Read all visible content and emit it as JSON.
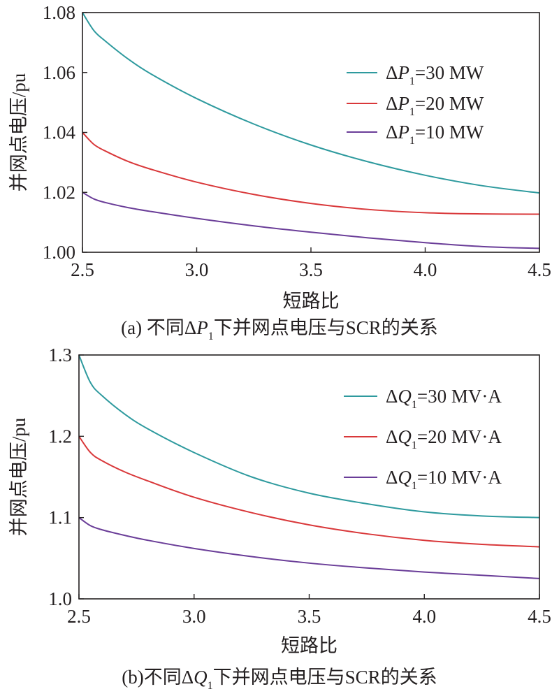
{
  "chart_data": [
    {
      "type": "line",
      "caption": {
        "prefix": "(a) 不同Δ",
        "sym": "P",
        "sub": "1",
        "suffix": "下并网点电压与SCR的关系"
      },
      "xlabel": "短路比",
      "ylabel": "并网点电压/pu",
      "xlim": [
        2.5,
        4.5
      ],
      "ylim": [
        1.0,
        1.08
      ],
      "xticks": [
        "2.5",
        "3.0",
        "3.5",
        "4.0",
        "4.5"
      ],
      "yticks": [
        "1.00",
        "1.02",
        "1.04",
        "1.06",
        "1.08"
      ],
      "legend_position": "top-right",
      "series": [
        {
          "name": "ΔP1=30 MW",
          "label": {
            "pre": "Δ",
            "sym": "P",
            "sub": "1",
            "post": "=30 MW"
          },
          "color": "#2e9a9e",
          "x": [
            2.5,
            2.55,
            2.6,
            2.7,
            2.8,
            3.0,
            3.25,
            3.5,
            3.75,
            4.0,
            4.25,
            4.5
          ],
          "y": [
            1.08,
            1.074,
            1.0705,
            1.0645,
            1.0595,
            1.0513,
            1.0428,
            1.0358,
            1.0302,
            1.0257,
            1.0222,
            1.0198
          ]
        },
        {
          "name": "ΔP1=20 MW",
          "label": {
            "pre": "Δ",
            "sym": "P",
            "sub": "1",
            "post": "=20 MW"
          },
          "color": "#d9383a",
          "x": [
            2.5,
            2.55,
            2.6,
            2.7,
            2.8,
            3.0,
            3.25,
            3.5,
            3.75,
            4.0,
            4.25,
            4.5
          ],
          "y": [
            1.04,
            1.036,
            1.0338,
            1.0303,
            1.0277,
            1.0234,
            1.0193,
            1.0163,
            1.0143,
            1.0132,
            1.0128,
            1.0127
          ]
        },
        {
          "name": "ΔP1=10 MW",
          "label": {
            "pre": "Δ",
            "sym": "P",
            "sub": "1",
            "post": "=10 MW"
          },
          "color": "#6a3d98",
          "x": [
            2.5,
            2.55,
            2.6,
            2.7,
            2.8,
            3.0,
            3.25,
            3.5,
            3.75,
            4.0,
            4.25,
            4.5
          ],
          "y": [
            1.02,
            1.0178,
            1.0166,
            1.0149,
            1.0136,
            1.0113,
            1.0088,
            1.0067,
            1.0048,
            1.0032,
            1.0019,
            1.0013
          ]
        }
      ]
    },
    {
      "type": "line",
      "caption": {
        "prefix": "(b)不同Δ",
        "sym": "Q",
        "sub": "1",
        "suffix": "下并网点电压与SCR的关系"
      },
      "xlabel": "短路比",
      "ylabel": "并网点电压/pu",
      "xlim": [
        2.5,
        4.5
      ],
      "ylim": [
        1.0,
        1.3
      ],
      "xticks": [
        "2.5",
        "3.0",
        "3.5",
        "4.0",
        "4.5"
      ],
      "yticks": [
        "1.0",
        "1.1",
        "1.2",
        "1.3"
      ],
      "legend_position": "top-right",
      "series": [
        {
          "name": "ΔQ1=30 MV·A",
          "label": {
            "pre": "Δ",
            "sym": "Q",
            "sub": "1",
            "post": "=30 MV·A"
          },
          "color": "#2e9a9e",
          "x": [
            2.5,
            2.55,
            2.6,
            2.7,
            2.8,
            3.0,
            3.25,
            3.5,
            3.75,
            4.0,
            4.25,
            4.5
          ],
          "y": [
            1.3,
            1.266,
            1.25,
            1.227,
            1.209,
            1.18,
            1.15,
            1.13,
            1.117,
            1.107,
            1.102,
            1.1
          ]
        },
        {
          "name": "ΔQ1=20 MV·A",
          "label": {
            "pre": "Δ",
            "sym": "Q",
            "sub": "1",
            "post": "=20 MV·A"
          },
          "color": "#d9383a",
          "x": [
            2.5,
            2.55,
            2.6,
            2.7,
            2.8,
            3.0,
            3.25,
            3.5,
            3.75,
            4.0,
            4.25,
            4.5
          ],
          "y": [
            1.2,
            1.18,
            1.17,
            1.156,
            1.145,
            1.125,
            1.106,
            1.091,
            1.08,
            1.072,
            1.067,
            1.064
          ]
        },
        {
          "name": "ΔQ1=10 MV·A",
          "label": {
            "pre": "Δ",
            "sym": "Q",
            "sub": "1",
            "post": "=10 MV·A"
          },
          "color": "#6a3d98",
          "x": [
            2.5,
            2.55,
            2.6,
            2.7,
            2.8,
            3.0,
            3.25,
            3.5,
            3.75,
            4.0,
            4.25,
            4.5
          ],
          "y": [
            1.1,
            1.09,
            1.085,
            1.078,
            1.072,
            1.062,
            1.052,
            1.044,
            1.038,
            1.033,
            1.029,
            1.025
          ]
        }
      ]
    }
  ]
}
